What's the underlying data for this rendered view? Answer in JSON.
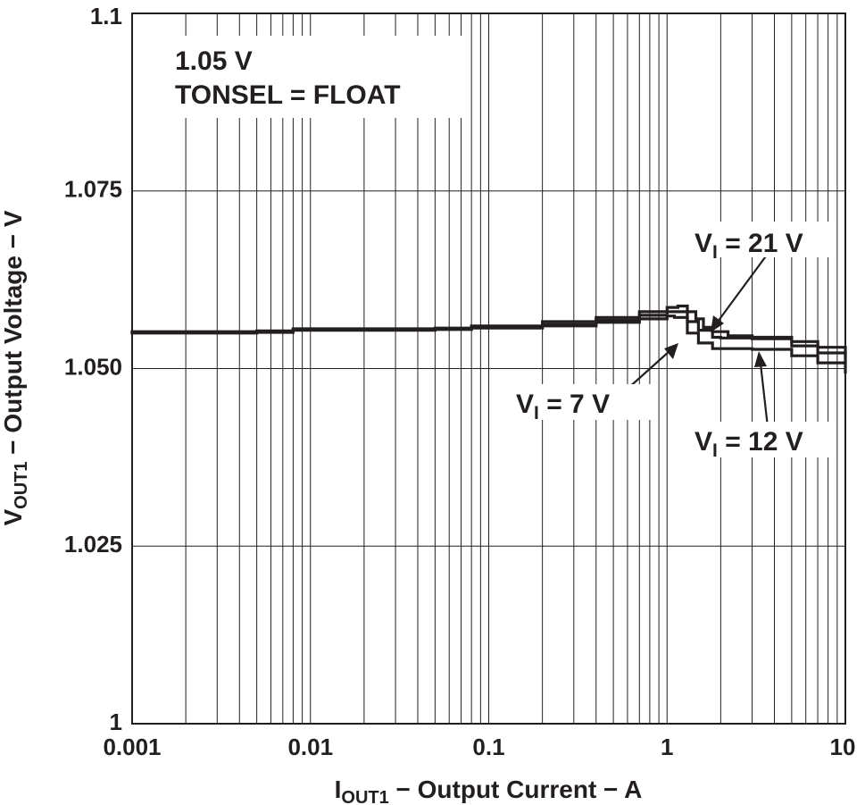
{
  "chart_data": {
    "type": "line",
    "xscale": "log",
    "xlim": [
      0.001,
      10
    ],
    "ylim": [
      1.0,
      1.1
    ],
    "grid": true,
    "x_ticks": [
      "0.001",
      "0.01",
      "0.1",
      "1",
      "10"
    ],
    "y_ticks": [
      "1",
      "1.025",
      "1.050",
      "1.075",
      "1.1"
    ],
    "y_tick_values": [
      1.0,
      1.025,
      1.05,
      1.075,
      1.1
    ],
    "xlabel": {
      "main": "I",
      "sub": "OUT1",
      "rest": " − Output Current − A"
    },
    "ylabel": {
      "main": "V",
      "sub": "OUT1",
      "rest": " − Output Voltage − V"
    },
    "annotation_lines": [
      "1.05 V",
      "TONSEL = FLOAT"
    ],
    "series": [
      {
        "name": "VI = 21 V",
        "label": {
          "main": "V",
          "sub": "I",
          "rest": " = 21 V"
        },
        "x": [
          0.001,
          0.003,
          0.005,
          0.008,
          0.02,
          0.05,
          0.08,
          0.2,
          0.4,
          0.7,
          1.0,
          1.15,
          1.3,
          1.45,
          1.6,
          1.8,
          2.2,
          3.0,
          5.0,
          7.0,
          10.0
        ],
        "y": [
          1.0552,
          1.0552,
          1.0553,
          1.0556,
          1.0556,
          1.0557,
          1.056,
          1.0566,
          1.0572,
          1.058,
          1.0586,
          1.0588,
          1.058,
          1.057,
          1.0558,
          1.0552,
          1.0546,
          1.0544,
          1.0538,
          1.053,
          1.0518
        ]
      },
      {
        "name": "VI = 12 V",
        "label": {
          "main": "V",
          "sub": "I",
          "rest": " = 12 V"
        },
        "x": [
          0.001,
          0.003,
          0.005,
          0.008,
          0.02,
          0.05,
          0.08,
          0.2,
          0.4,
          0.7,
          1.0,
          1.15,
          1.3,
          1.5,
          1.8,
          2.0,
          3.0,
          5.0,
          7.0,
          10.0
        ],
        "y": [
          1.0551,
          1.0551,
          1.0552,
          1.0555,
          1.0555,
          1.0556,
          1.0558,
          1.0562,
          1.0568,
          1.0575,
          1.058,
          1.058,
          1.0566,
          1.0554,
          1.0544,
          1.0543,
          1.0542,
          1.0532,
          1.0522,
          1.051
        ]
      },
      {
        "name": "VI = 7 V",
        "label": {
          "main": "V",
          "sub": "I",
          "rest": " = 7 V"
        },
        "x": [
          0.001,
          0.003,
          0.005,
          0.008,
          0.02,
          0.05,
          0.08,
          0.2,
          0.4,
          0.7,
          1.0,
          1.1,
          1.3,
          1.5,
          1.8,
          2.2,
          3.0,
          5.0,
          7.0,
          10.0
        ],
        "y": [
          1.055,
          1.055,
          1.0551,
          1.0554,
          1.0554,
          1.0555,
          1.0557,
          1.056,
          1.0565,
          1.057,
          1.0574,
          1.0572,
          1.055,
          1.0536,
          1.0528,
          1.0528,
          1.0527,
          1.0518,
          1.0508,
          1.0495
        ]
      }
    ]
  }
}
